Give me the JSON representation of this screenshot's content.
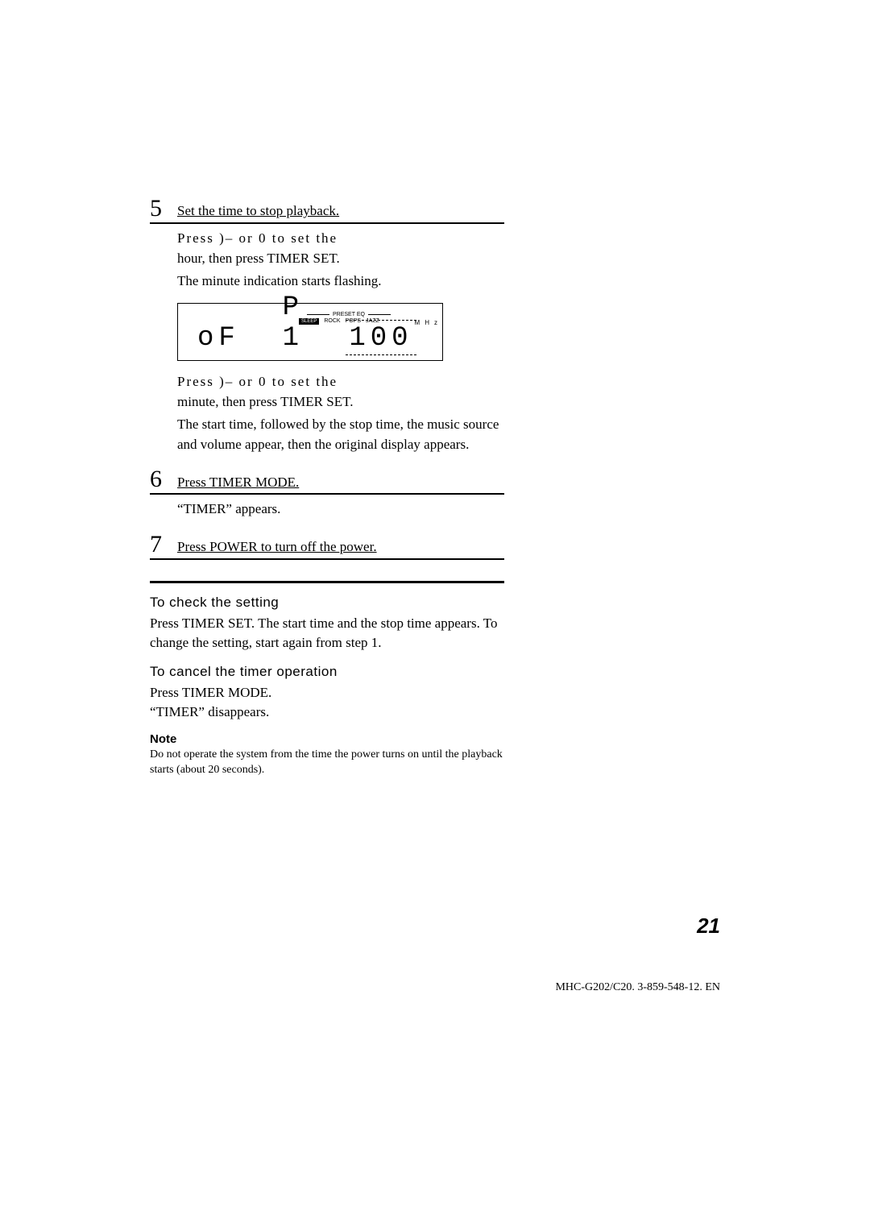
{
  "steps": {
    "s5": {
      "num": "5",
      "title": "Set the time to stop playback.",
      "line1a": "Press )– or 0 to set the",
      "line1b": "hour, then press TIMER SET.",
      "line2": "The minute indication starts flashing.",
      "line3a": "Press )– or 0 to set the",
      "line3b": "minute, then press TIMER SET.",
      "line4": "The start time, followed by the stop time, the music source and volume appear, then the original display appears."
    },
    "s6": {
      "num": "6",
      "title": "Press TIMER MODE.",
      "line1": "“TIMER” appears."
    },
    "s7": {
      "num": "7",
      "title": "Press POWER to turn off the power."
    }
  },
  "display": {
    "preset_label": "PRESET EQ",
    "eq_sleep": "SLEEP",
    "eq_rock": "ROCK",
    "eq_pops": "POPS",
    "eq_jazz": "JAZZ",
    "seg_left": "oF",
    "seg_mid": "P 1",
    "seg_right": "100",
    "mhz": "MHz",
    "ticks": "- - -"
  },
  "sections": {
    "check_h": "To check the setting",
    "check_body": "Press TIMER SET.  The start time and the stop time appears.  To change the setting, start again from step 1.",
    "cancel_h": "To cancel the timer operation",
    "cancel_body1": "Press TIMER MODE.",
    "cancel_body2": "“TIMER” disappears.",
    "note_h": "Note",
    "note_body": "Do not operate the system from the time the power turns on until the playback starts (about 20 seconds)."
  },
  "page_number": "21",
  "footer": "MHC-G202/C20. 3-859-548-12. EN",
  "colors": {
    "text": "#000000",
    "bg": "#ffffff"
  }
}
